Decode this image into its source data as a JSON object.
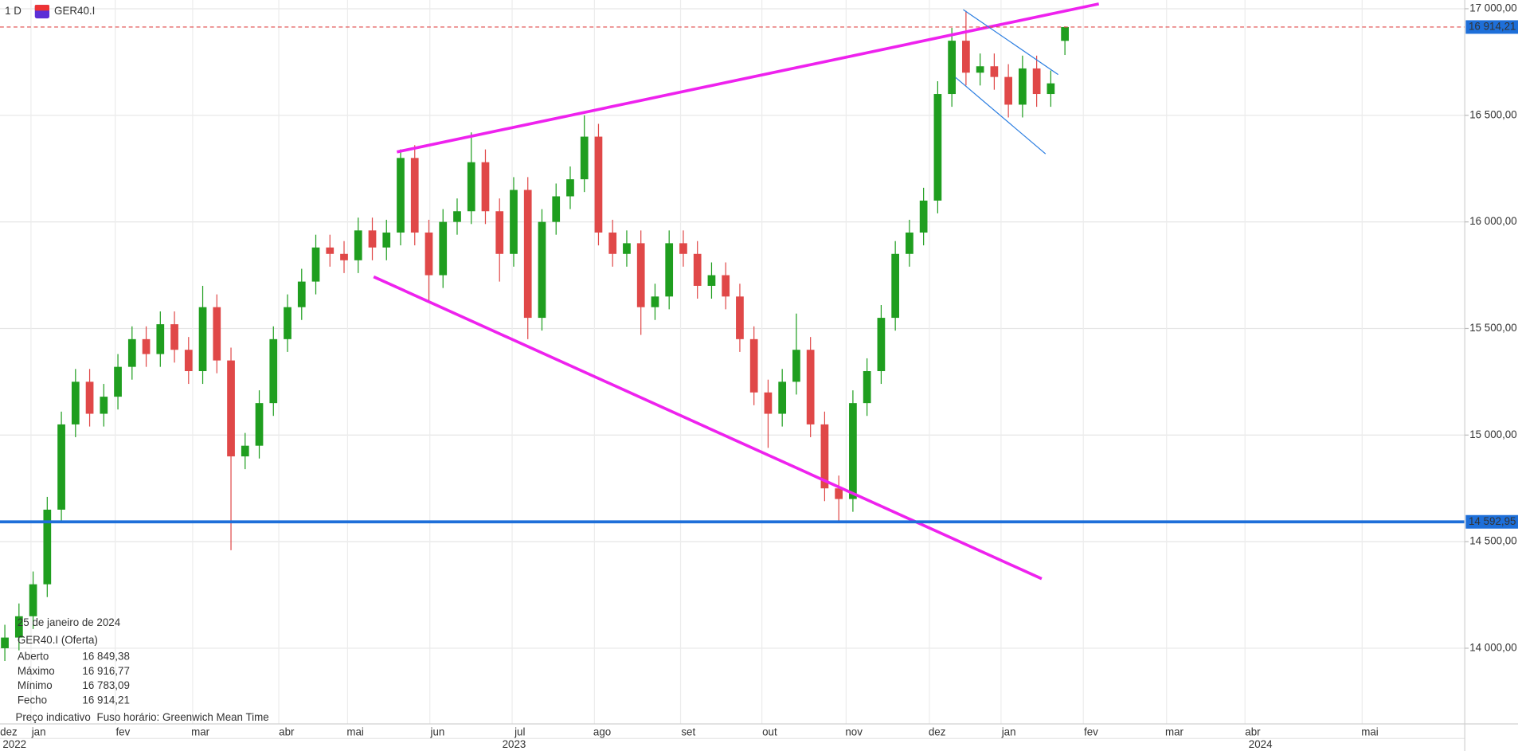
{
  "chart_data": {
    "type": "candlestick",
    "timeframe": "1 D",
    "symbol": "GER40.I",
    "up_color": "#1f9e1f",
    "down_color": "#e04848",
    "grid": true,
    "ylim": [
      13645,
      17041
    ],
    "yticks": [
      {
        "value": 14000,
        "label": "14 000,00"
      },
      {
        "value": 14500,
        "label": "14 500,00"
      },
      {
        "value": 15000,
        "label": "15 000,00"
      },
      {
        "value": 15500,
        "label": "15 500,00"
      },
      {
        "value": 16000,
        "label": "16 000,00"
      },
      {
        "value": 16500,
        "label": "16 500,00"
      },
      {
        "value": 17000,
        "label": "17 000,00"
      }
    ],
    "x_labels": [
      "dez",
      "jan",
      "fev",
      "mar",
      "abr",
      "mai",
      "jun",
      "jul",
      "ago",
      "set",
      "out",
      "nov",
      "dez",
      "jan",
      "fev",
      "mar",
      "abr",
      "mai"
    ],
    "year_labels": [
      "2022",
      "2023",
      "2024"
    ],
    "open": [
      14000,
      14050,
      14150,
      14300,
      14650,
      15050,
      15250,
      15100,
      15180,
      15320,
      15450,
      15380,
      15520,
      15400,
      15300,
      15600,
      15350,
      14900,
      14950,
      15150,
      15450,
      15600,
      15720,
      15880,
      15850,
      15820,
      15960,
      15880,
      15950,
      16300,
      15950,
      15750,
      16000,
      16050,
      16280,
      16050,
      15850,
      16150,
      15550,
      16000,
      16120,
      16200,
      16400,
      15950,
      15850,
      15900,
      15600,
      15650,
      15900,
      15850,
      15700,
      15750,
      15650,
      15450,
      15200,
      15100,
      15250,
      15400,
      15050,
      14750,
      14700,
      15150,
      15300,
      15550,
      15850,
      15950,
      16100,
      16600,
      16850,
      16700,
      16730,
      16680,
      16550,
      16720,
      16600,
      16849.38
    ],
    "high": [
      14110,
      14210,
      14360,
      14710,
      15110,
      15310,
      15310,
      15240,
      15380,
      15510,
      15510,
      15580,
      15580,
      15460,
      15700,
      15660,
      15410,
      15010,
      15210,
      15510,
      15660,
      15780,
      15940,
      15940,
      15910,
      16020,
      16020,
      16010,
      16340,
      16360,
      16010,
      16060,
      16110,
      16420,
      16340,
      16110,
      16210,
      16210,
      16060,
      16180,
      16260,
      16500,
      16460,
      16010,
      15960,
      15960,
      15710,
      15960,
      15960,
      15910,
      15810,
      15810,
      15710,
      15510,
      15260,
      15310,
      15570,
      15460,
      15110,
      14810,
      15210,
      15360,
      15610,
      15910,
      16010,
      16160,
      16660,
      16910,
      16990,
      16790,
      16790,
      16740,
      16780,
      16780,
      16710,
      16916.77
    ],
    "low": [
      13940,
      13990,
      14090,
      14240,
      14590,
      14990,
      15040,
      15040,
      15120,
      15260,
      15320,
      15320,
      15340,
      15240,
      15240,
      15290,
      14460,
      14840,
      14890,
      15090,
      15390,
      15540,
      15660,
      15790,
      15760,
      15760,
      15820,
      15820,
      15890,
      15890,
      15620,
      15690,
      15940,
      15990,
      15990,
      15720,
      15790,
      15450,
      15490,
      15940,
      16060,
      16140,
      15890,
      15790,
      15790,
      15470,
      15540,
      15590,
      15790,
      15640,
      15640,
      15590,
      15390,
      15140,
      14940,
      15040,
      15190,
      14990,
      14690,
      14590,
      14640,
      15090,
      15240,
      15490,
      15790,
      15890,
      16040,
      16540,
      16640,
      16640,
      16620,
      16490,
      16490,
      16540,
      16540,
      16783.09
    ],
    "close": [
      14050,
      14150,
      14300,
      14650,
      15050,
      15250,
      15100,
      15180,
      15320,
      15450,
      15380,
      15520,
      15400,
      15300,
      15600,
      15350,
      14900,
      14950,
      15150,
      15450,
      15600,
      15720,
      15880,
      15850,
      15820,
      15960,
      15880,
      15950,
      16300,
      15950,
      15750,
      16000,
      16050,
      16280,
      16050,
      15850,
      16150,
      15550,
      16000,
      16120,
      16200,
      16400,
      15950,
      15850,
      15900,
      15600,
      15650,
      15900,
      15850,
      15700,
      15750,
      15650,
      15450,
      15200,
      15100,
      15250,
      15400,
      15050,
      14750,
      14700,
      15150,
      15300,
      15550,
      15850,
      15950,
      16100,
      16600,
      16850,
      16700,
      16730,
      16680,
      16550,
      16720,
      16600,
      16650,
      16914.21
    ],
    "hlines": [
      {
        "value": 16914.21,
        "label": "16 914,21",
        "color": "#e04848",
        "style": "dashed"
      },
      {
        "value": 14592.95,
        "label": "14 592,95",
        "color": "#1e6fd9",
        "style": "solid"
      }
    ],
    "info": {
      "date": "25 de janeiro de 2024",
      "title": "GER40.I (Oferta)",
      "rows": [
        {
          "label": "Aberto",
          "value": "16 849,38"
        },
        {
          "label": "Máximo",
          "value": "16 916,77"
        },
        {
          "label": "Mínimo",
          "value": "16 783,09"
        },
        {
          "label": "Fecho",
          "value": "16 914,21"
        }
      ],
      "footer": [
        "Preço indicativo",
        "Fuso horário: Greenwich Mean Time"
      ]
    }
  }
}
